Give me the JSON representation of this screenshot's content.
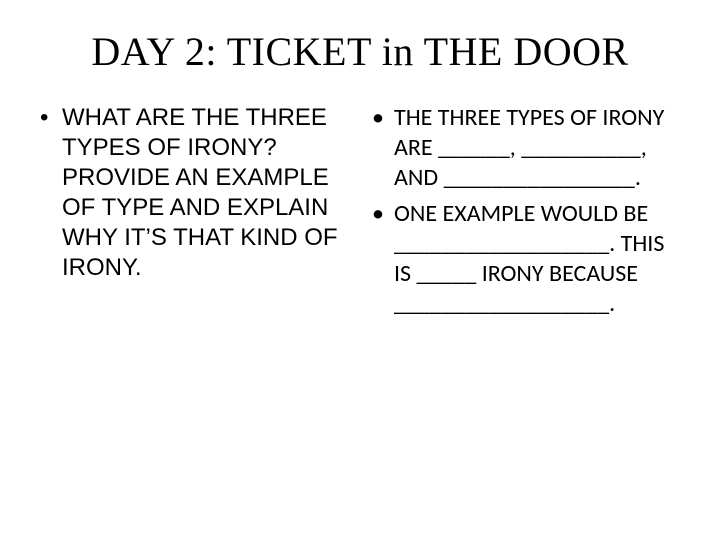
{
  "title": "DAY 2: TICKET in THE DOOR",
  "left": {
    "items": [
      "WHAT ARE THE THREE TYPES OF IRONY? PROVIDE AN EXAMPLE OF TYPE AND EXPLAIN WHY IT’S THAT KIND OF IRONY."
    ]
  },
  "right": {
    "items": [
      "THE THREE TYPES OF IRONY ARE ______, __________, AND ________________.",
      "ONE EXAMPLE WOULD BE __________________. THIS IS _____ IRONY BECAUSE __________________."
    ]
  }
}
